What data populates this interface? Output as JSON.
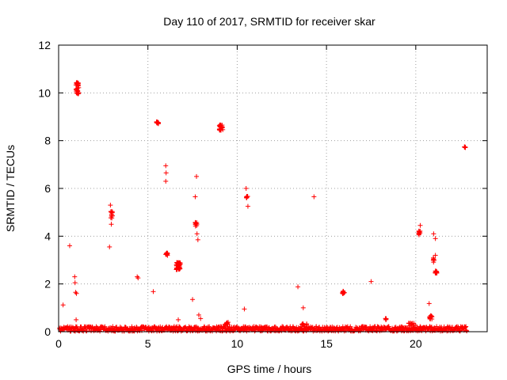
{
  "chart_data": {
    "type": "scatter",
    "title": "Day 110 of 2017, SRMTID for receiver skar",
    "xlabel": "GPS time / hours",
    "ylabel": "SRMTID / TECUs",
    "xlim": [
      0,
      24
    ],
    "ylim": [
      0,
      12
    ],
    "x_ticks": [
      0,
      5,
      10,
      15,
      20
    ],
    "y_ticks": [
      0,
      2,
      4,
      6,
      8,
      10,
      12
    ],
    "grid": true,
    "legend": "none",
    "marker": "plus",
    "color": "#ff0000",
    "baseline": {
      "x_start": 0.05,
      "x_end": 22.85,
      "y_min": 0.02,
      "y_max": 0.22,
      "count": 900
    },
    "clusters": [
      {
        "x": 1.05,
        "y": 10.2,
        "spread_x": 0.08,
        "spread_y": 0.25,
        "count": 30
      },
      {
        "x": 5.55,
        "y": 8.75,
        "spread_x": 0.08,
        "spread_y": 0.05,
        "count": 15
      },
      {
        "x": 9.1,
        "y": 8.55,
        "spread_x": 0.1,
        "spread_y": 0.12,
        "count": 30
      },
      {
        "x": 22.75,
        "y": 7.72,
        "spread_x": 0.03,
        "spread_y": 0.05,
        "count": 6
      },
      {
        "x": 6.05,
        "y": 3.25,
        "spread_x": 0.06,
        "spread_y": 0.06,
        "count": 12
      },
      {
        "x": 6.7,
        "y": 2.75,
        "spread_x": 0.12,
        "spread_y": 0.15,
        "count": 45
      },
      {
        "x": 7.7,
        "y": 4.5,
        "spread_x": 0.05,
        "spread_y": 0.08,
        "count": 10
      },
      {
        "x": 10.55,
        "y": 5.65,
        "spread_x": 0.05,
        "spread_y": 0.05,
        "count": 8
      },
      {
        "x": 2.95,
        "y": 4.9,
        "spread_x": 0.06,
        "spread_y": 0.15,
        "count": 12
      },
      {
        "x": 15.95,
        "y": 1.65,
        "spread_x": 0.06,
        "spread_y": 0.06,
        "count": 12
      },
      {
        "x": 20.2,
        "y": 4.15,
        "spread_x": 0.05,
        "spread_y": 0.12,
        "count": 10
      },
      {
        "x": 21.15,
        "y": 2.5,
        "spread_x": 0.07,
        "spread_y": 0.05,
        "count": 15
      },
      {
        "x": 21.0,
        "y": 3.0,
        "spread_x": 0.04,
        "spread_y": 0.1,
        "count": 8
      },
      {
        "x": 20.85,
        "y": 0.6,
        "spread_x": 0.08,
        "spread_y": 0.08,
        "count": 15
      },
      {
        "x": 18.3,
        "y": 0.55,
        "spread_x": 0.04,
        "spread_y": 0.05,
        "count": 5
      },
      {
        "x": 9.4,
        "y": 0.35,
        "spread_x": 0.1,
        "spread_y": 0.05,
        "count": 10
      },
      {
        "x": 13.75,
        "y": 0.3,
        "spread_x": 0.15,
        "spread_y": 0.05,
        "count": 10
      },
      {
        "x": 19.8,
        "y": 0.3,
        "spread_x": 0.2,
        "spread_y": 0.06,
        "count": 12
      }
    ],
    "points": [
      {
        "x": 0.25,
        "y": 1.12
      },
      {
        "x": 0.62,
        "y": 3.6
      },
      {
        "x": 0.9,
        "y": 2.3
      },
      {
        "x": 0.92,
        "y": 2.05
      },
      {
        "x": 0.95,
        "y": 1.65
      },
      {
        "x": 1.0,
        "y": 1.6
      },
      {
        "x": 0.98,
        "y": 0.5
      },
      {
        "x": 2.85,
        "y": 3.55
      },
      {
        "x": 2.9,
        "y": 5.3
      },
      {
        "x": 2.95,
        "y": 4.5
      },
      {
        "x": 4.4,
        "y": 2.3
      },
      {
        "x": 4.45,
        "y": 2.25
      },
      {
        "x": 5.3,
        "y": 1.68
      },
      {
        "x": 6.0,
        "y": 6.95
      },
      {
        "x": 6.02,
        "y": 6.65
      },
      {
        "x": 6.0,
        "y": 6.3
      },
      {
        "x": 6.7,
        "y": 0.5
      },
      {
        "x": 7.5,
        "y": 1.35
      },
      {
        "x": 7.65,
        "y": 5.65
      },
      {
        "x": 7.72,
        "y": 6.5
      },
      {
        "x": 7.75,
        "y": 4.1
      },
      {
        "x": 7.8,
        "y": 3.85
      },
      {
        "x": 7.85,
        "y": 0.7
      },
      {
        "x": 7.95,
        "y": 0.55
      },
      {
        "x": 10.4,
        "y": 0.95
      },
      {
        "x": 10.5,
        "y": 6.0
      },
      {
        "x": 10.6,
        "y": 5.25
      },
      {
        "x": 13.4,
        "y": 1.88
      },
      {
        "x": 13.7,
        "y": 1.0
      },
      {
        "x": 14.3,
        "y": 5.65
      },
      {
        "x": 17.5,
        "y": 2.1
      },
      {
        "x": 20.25,
        "y": 4.45
      },
      {
        "x": 20.75,
        "y": 1.18
      },
      {
        "x": 21.0,
        "y": 4.1
      },
      {
        "x": 21.1,
        "y": 3.9
      },
      {
        "x": 21.1,
        "y": 3.2
      }
    ]
  }
}
